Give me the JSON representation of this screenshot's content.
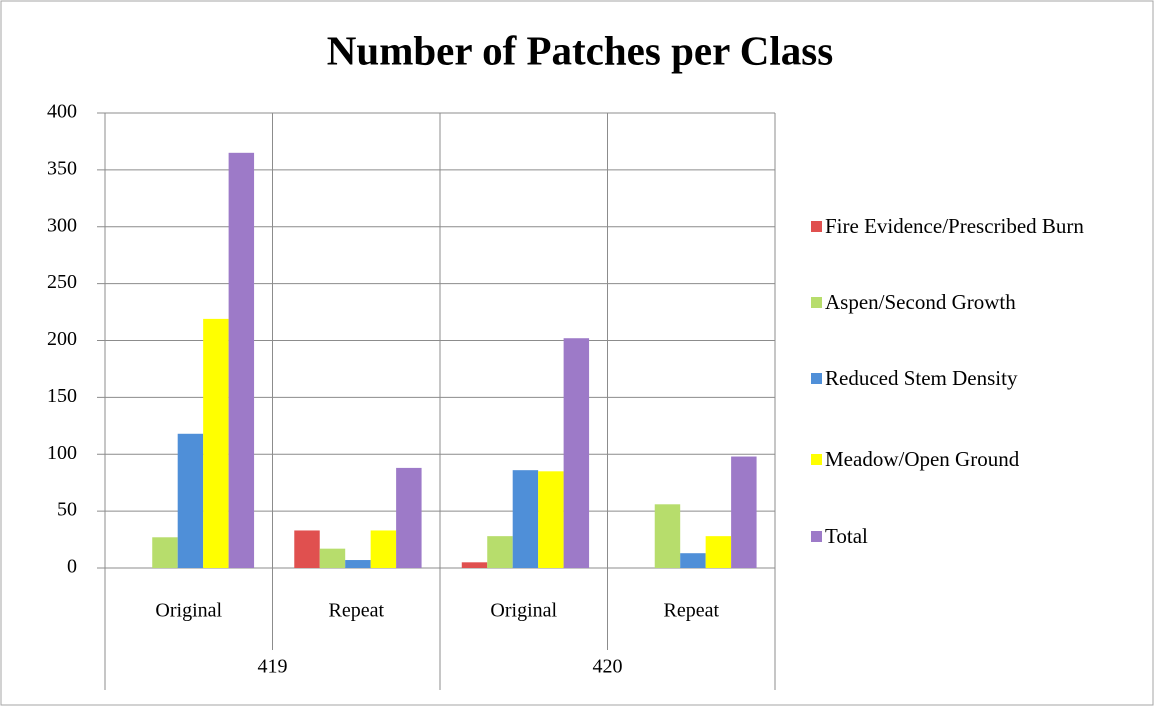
{
  "chart_data": {
    "type": "bar",
    "title": "Number of Patches per Class",
    "categories": [
      "Original",
      "Repeat",
      "Original",
      "Repeat"
    ],
    "groups": [
      "419",
      "420"
    ],
    "series": [
      {
        "name": "Fire Evidence/Prescribed Burn",
        "color": "#e0504f",
        "values": [
          0,
          33,
          5,
          0
        ]
      },
      {
        "name": "Aspen/Second Growth",
        "color": "#b7dd6c",
        "values": [
          27,
          17,
          28,
          56
        ]
      },
      {
        "name": "Reduced Stem Density",
        "color": "#4f8fd8",
        "values": [
          118,
          7,
          86,
          13
        ]
      },
      {
        "name": "Meadow/Open Ground",
        "color": "#ffff00",
        "values": [
          219,
          33,
          85,
          28
        ]
      },
      {
        "name": "Total",
        "color": "#9d7ac8",
        "values": [
          365,
          88,
          202,
          98
        ]
      }
    ],
    "ylim": [
      0,
      400
    ],
    "yticks": [
      0,
      50,
      100,
      150,
      200,
      250,
      300,
      350,
      400
    ],
    "grid": true,
    "legend": "right"
  }
}
